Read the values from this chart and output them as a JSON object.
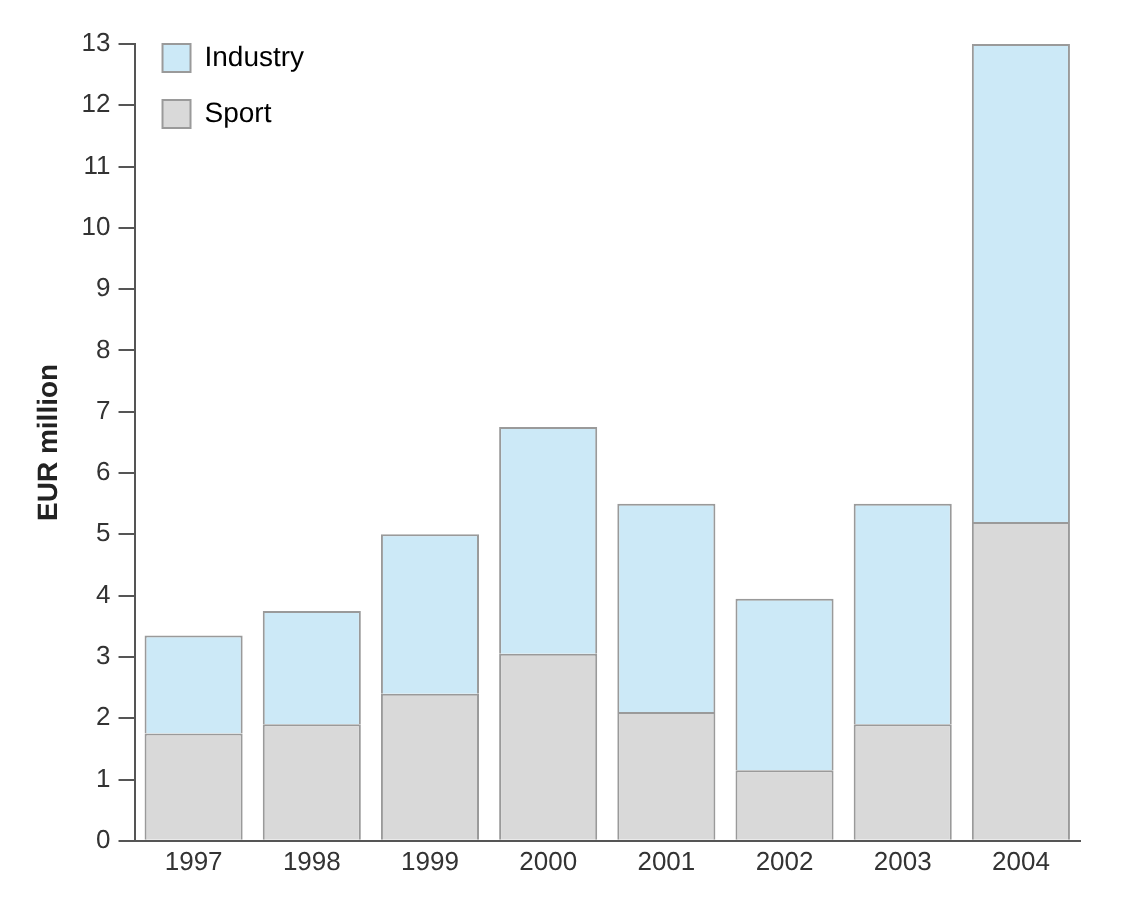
{
  "chart_data": {
    "type": "bar",
    "stacked": true,
    "ylabel": "EUR million",
    "categories": [
      "1997",
      "1998",
      "1999",
      "2000",
      "2001",
      "2002",
      "2003",
      "2004"
    ],
    "series": [
      {
        "name": "Sport",
        "color": "#d9d9d9",
        "values": [
          1.75,
          1.9,
          2.4,
          3.05,
          2.1,
          1.15,
          1.9,
          5.2
        ]
      },
      {
        "name": "Industry",
        "color": "#cce9f7",
        "values": [
          1.6,
          1.85,
          2.6,
          3.7,
          3.4,
          2.8,
          3.6,
          7.8
        ]
      }
    ],
    "ylim": [
      0,
      13
    ],
    "yticks": [
      0,
      1,
      2,
      3,
      4,
      5,
      6,
      7,
      8,
      9,
      10,
      11,
      12,
      13
    ],
    "grid": false,
    "legend": "top left"
  }
}
